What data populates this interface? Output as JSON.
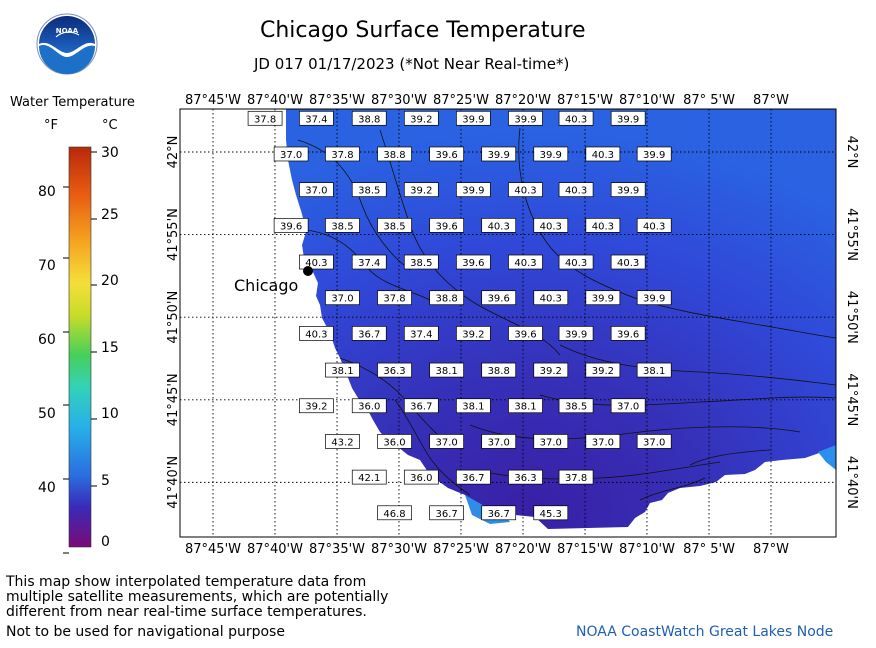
{
  "header": {
    "title": "Chicago Surface Temperature",
    "subtitle": "JD 017 01/17/2023 (*Not Near Real-time*)"
  },
  "legend": {
    "title": "Water Temperature",
    "unit_f": "°F",
    "unit_c": "°C",
    "f_ticks": [
      "80",
      "70",
      "60",
      "50",
      "40"
    ],
    "c_ticks": [
      "30",
      "25",
      "20",
      "15",
      "10",
      "5",
      "0"
    ],
    "colors": [
      "#7a0a78",
      "#3a2ab8",
      "#2a6fe0",
      "#27b0e8",
      "#33d2b8",
      "#47cf5a",
      "#c9dc2a",
      "#f5de3a",
      "#f4a01f",
      "#e85d13",
      "#b8280b"
    ]
  },
  "map": {
    "lon_labels": [
      "87°45'W",
      "87°40'W",
      "87°35'W",
      "87°30'W",
      "87°25'W",
      "87°20'W",
      "87°15'W",
      "87°10'W",
      "87° 5'W",
      "87°W"
    ],
    "lat_labels": [
      "42°N",
      "41°55'N",
      "41°50'N",
      "41°45'N",
      "41°40'N"
    ],
    "city_label": "Chicago",
    "water_color": "#3a4ee0",
    "cells": [
      {
        "t": "37.8",
        "lon": -87.68,
        "lat": 42.034
      },
      {
        "t": "37.4",
        "lon": -87.611,
        "lat": 42.034
      },
      {
        "t": "38.8",
        "lon": -87.54,
        "lat": 42.034
      },
      {
        "t": "39.2",
        "lon": -87.47,
        "lat": 42.034
      },
      {
        "t": "39.9",
        "lon": -87.4,
        "lat": 42.034
      },
      {
        "t": "39.9",
        "lon": -87.33,
        "lat": 42.034
      },
      {
        "t": "40.3",
        "lon": -87.262,
        "lat": 42.034
      },
      {
        "t": "39.9",
        "lon": -87.192,
        "lat": 42.034
      },
      {
        "t": "37.0",
        "lon": -87.645,
        "lat": 41.998
      },
      {
        "t": "37.8",
        "lon": -87.576,
        "lat": 41.998
      },
      {
        "t": "38.8",
        "lon": -87.506,
        "lat": 41.998
      },
      {
        "t": "39.6",
        "lon": -87.436,
        "lat": 41.998
      },
      {
        "t": "39.9",
        "lon": -87.366,
        "lat": 41.998
      },
      {
        "t": "39.9",
        "lon": -87.296,
        "lat": 41.998
      },
      {
        "t": "40.3",
        "lon": -87.226,
        "lat": 41.998
      },
      {
        "t": "39.9",
        "lon": -87.157,
        "lat": 41.998
      },
      {
        "t": "37.0",
        "lon": -87.611,
        "lat": 41.962
      },
      {
        "t": "38.5",
        "lon": -87.54,
        "lat": 41.962
      },
      {
        "t": "39.2",
        "lon": -87.47,
        "lat": 41.962
      },
      {
        "t": "39.9",
        "lon": -87.4,
        "lat": 41.962
      },
      {
        "t": "40.3",
        "lon": -87.33,
        "lat": 41.962
      },
      {
        "t": "40.3",
        "lon": -87.262,
        "lat": 41.962
      },
      {
        "t": "39.9",
        "lon": -87.192,
        "lat": 41.962
      },
      {
        "t": "39.6",
        "lon": -87.645,
        "lat": 41.926
      },
      {
        "t": "38.5",
        "lon": -87.576,
        "lat": 41.926
      },
      {
        "t": "38.5",
        "lon": -87.506,
        "lat": 41.926
      },
      {
        "t": "39.6",
        "lon": -87.436,
        "lat": 41.926
      },
      {
        "t": "40.3",
        "lon": -87.366,
        "lat": 41.926
      },
      {
        "t": "40.3",
        "lon": -87.296,
        "lat": 41.926
      },
      {
        "t": "40.3",
        "lon": -87.226,
        "lat": 41.926
      },
      {
        "t": "40.3",
        "lon": -87.157,
        "lat": 41.926
      },
      {
        "t": "40.3",
        "lon": -87.611,
        "lat": 41.889
      },
      {
        "t": "37.4",
        "lon": -87.54,
        "lat": 41.889
      },
      {
        "t": "38.5",
        "lon": -87.47,
        "lat": 41.889
      },
      {
        "t": "39.6",
        "lon": -87.4,
        "lat": 41.889
      },
      {
        "t": "40.3",
        "lon": -87.33,
        "lat": 41.889
      },
      {
        "t": "40.3",
        "lon": -87.262,
        "lat": 41.889
      },
      {
        "t": "40.3",
        "lon": -87.192,
        "lat": 41.889
      },
      {
        "t": "37.0",
        "lon": -87.576,
        "lat": 41.853
      },
      {
        "t": "37.8",
        "lon": -87.506,
        "lat": 41.853
      },
      {
        "t": "38.8",
        "lon": -87.436,
        "lat": 41.853
      },
      {
        "t": "39.6",
        "lon": -87.366,
        "lat": 41.853
      },
      {
        "t": "40.3",
        "lon": -87.296,
        "lat": 41.853
      },
      {
        "t": "39.9",
        "lon": -87.226,
        "lat": 41.853
      },
      {
        "t": "39.9",
        "lon": -87.157,
        "lat": 41.853
      },
      {
        "t": "40.3",
        "lon": -87.611,
        "lat": 41.817
      },
      {
        "t": "36.7",
        "lon": -87.54,
        "lat": 41.817
      },
      {
        "t": "37.4",
        "lon": -87.47,
        "lat": 41.817
      },
      {
        "t": "39.2",
        "lon": -87.4,
        "lat": 41.817
      },
      {
        "t": "39.6",
        "lon": -87.33,
        "lat": 41.817
      },
      {
        "t": "39.9",
        "lon": -87.262,
        "lat": 41.817
      },
      {
        "t": "39.6",
        "lon": -87.192,
        "lat": 41.817
      },
      {
        "t": "38.1",
        "lon": -87.576,
        "lat": 41.78
      },
      {
        "t": "36.3",
        "lon": -87.506,
        "lat": 41.78
      },
      {
        "t": "38.1",
        "lon": -87.436,
        "lat": 41.78
      },
      {
        "t": "38.8",
        "lon": -87.366,
        "lat": 41.78
      },
      {
        "t": "39.2",
        "lon": -87.296,
        "lat": 41.78
      },
      {
        "t": "39.2",
        "lon": -87.226,
        "lat": 41.78
      },
      {
        "t": "38.1",
        "lon": -87.157,
        "lat": 41.78
      },
      {
        "t": "39.2",
        "lon": -87.611,
        "lat": 41.744
      },
      {
        "t": "36.0",
        "lon": -87.54,
        "lat": 41.744
      },
      {
        "t": "36.7",
        "lon": -87.47,
        "lat": 41.744
      },
      {
        "t": "38.1",
        "lon": -87.4,
        "lat": 41.744
      },
      {
        "t": "38.1",
        "lon": -87.33,
        "lat": 41.744
      },
      {
        "t": "38.5",
        "lon": -87.262,
        "lat": 41.744
      },
      {
        "t": "37.0",
        "lon": -87.192,
        "lat": 41.744
      },
      {
        "t": "43.2",
        "lon": -87.576,
        "lat": 41.708
      },
      {
        "t": "36.0",
        "lon": -87.506,
        "lat": 41.708
      },
      {
        "t": "37.0",
        "lon": -87.436,
        "lat": 41.708
      },
      {
        "t": "37.0",
        "lon": -87.366,
        "lat": 41.708
      },
      {
        "t": "37.0",
        "lon": -87.296,
        "lat": 41.708
      },
      {
        "t": "37.0",
        "lon": -87.226,
        "lat": 41.708
      },
      {
        "t": "37.0",
        "lon": -87.157,
        "lat": 41.708
      },
      {
        "t": "42.1",
        "lon": -87.54,
        "lat": 41.672
      },
      {
        "t": "36.0",
        "lon": -87.47,
        "lat": 41.672
      },
      {
        "t": "36.7",
        "lon": -87.4,
        "lat": 41.672
      },
      {
        "t": "36.3",
        "lon": -87.33,
        "lat": 41.672
      },
      {
        "t": "37.8",
        "lon": -87.262,
        "lat": 41.672
      },
      {
        "t": "46.8",
        "lon": -87.506,
        "lat": 41.636
      },
      {
        "t": "36.7",
        "lon": -87.436,
        "lat": 41.636
      },
      {
        "t": "36.7",
        "lon": -87.366,
        "lat": 41.636
      },
      {
        "t": "45.3",
        "lon": -87.296,
        "lat": 41.636
      }
    ]
  },
  "footer": {
    "note_lines": [
      "This map show interpolated temperature data from",
      "multiple satellite measurements, which are potentially",
      "different from near real-time surface temperatures."
    ],
    "nav_warning": "Not to be used for navigational purpose",
    "credit": "NOAA CoastWatch Great Lakes Node"
  }
}
